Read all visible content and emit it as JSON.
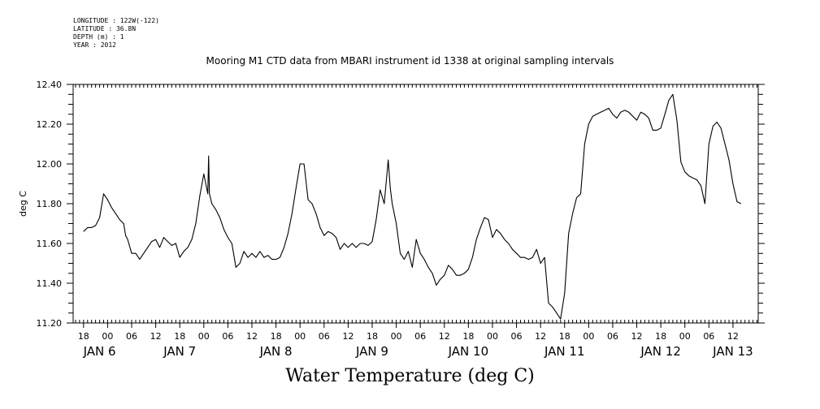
{
  "header": {
    "lines": [
      "LONGITUDE : 122W(-122)",
      "LATITUDE : 36.8N",
      "DEPTH (m) : 1",
      "YEAR : 2012"
    ]
  },
  "chart_data": {
    "type": "line",
    "title": "Mooring M1 CTD data from MBARI instrument id 1338 at original sampling intervals",
    "xlabel": "Water Temperature (deg C)",
    "ylabel": "deg C",
    "ylim": [
      11.2,
      12.4
    ],
    "yticks": [
      11.2,
      11.4,
      11.6,
      11.8,
      12.0,
      12.2,
      12.4
    ],
    "ytick_labels": [
      "11.20",
      "11.40",
      "11.60",
      "11.80",
      "12.00",
      "12.20",
      "12.40"
    ],
    "xlim_hours": [
      0,
      167
    ],
    "hour_ticks": [
      {
        "h": 0,
        "label": "18"
      },
      {
        "h": 6,
        "label": "00"
      },
      {
        "h": 12,
        "label": "06"
      },
      {
        "h": 18,
        "label": "12"
      },
      {
        "h": 24,
        "label": "18"
      },
      {
        "h": 30,
        "label": "00"
      },
      {
        "h": 36,
        "label": "06"
      },
      {
        "h": 42,
        "label": "12"
      },
      {
        "h": 48,
        "label": "18"
      },
      {
        "h": 54,
        "label": "00"
      },
      {
        "h": 60,
        "label": "06"
      },
      {
        "h": 66,
        "label": "12"
      },
      {
        "h": 72,
        "label": "18"
      },
      {
        "h": 78,
        "label": "00"
      },
      {
        "h": 84,
        "label": "06"
      },
      {
        "h": 90,
        "label": "12"
      },
      {
        "h": 96,
        "label": "18"
      },
      {
        "h": 102,
        "label": "00"
      },
      {
        "h": 108,
        "label": "06"
      },
      {
        "h": 114,
        "label": "12"
      },
      {
        "h": 120,
        "label": "18"
      },
      {
        "h": 126,
        "label": "00"
      },
      {
        "h": 132,
        "label": "06"
      },
      {
        "h": 138,
        "label": "12"
      },
      {
        "h": 144,
        "label": "18"
      },
      {
        "h": 150,
        "label": "00"
      },
      {
        "h": 156,
        "label": "06"
      },
      {
        "h": 162,
        "label": "12"
      }
    ],
    "day_labels": [
      {
        "h": 4,
        "label": "JAN 6"
      },
      {
        "h": 24,
        "label": "JAN 7"
      },
      {
        "h": 48,
        "label": "JAN 8"
      },
      {
        "h": 72,
        "label": "JAN 9"
      },
      {
        "h": 96,
        "label": "JAN 10"
      },
      {
        "h": 120,
        "label": "JAN 11"
      },
      {
        "h": 144,
        "label": "JAN 12"
      },
      {
        "h": 162,
        "label": "JAN 13"
      }
    ],
    "series": [
      {
        "points": [
          [
            0,
            11.66
          ],
          [
            1,
            11.68
          ],
          [
            2,
            11.68
          ],
          [
            3,
            11.69
          ],
          [
            4,
            11.73
          ],
          [
            5,
            11.85
          ],
          [
            6,
            11.82
          ],
          [
            7,
            11.78
          ],
          [
            8,
            11.75
          ],
          [
            9,
            11.72
          ],
          [
            10,
            11.7
          ],
          [
            10.5,
            11.64
          ],
          [
            11,
            11.62
          ],
          [
            12,
            11.55
          ],
          [
            13,
            11.55
          ],
          [
            14,
            11.52
          ],
          [
            15,
            11.55
          ],
          [
            16,
            11.58
          ],
          [
            17,
            11.61
          ],
          [
            18,
            11.62
          ],
          [
            19,
            11.58
          ],
          [
            20,
            11.63
          ],
          [
            21,
            11.61
          ],
          [
            22,
            11.59
          ],
          [
            23,
            11.6
          ],
          [
            24,
            11.53
          ],
          [
            25,
            11.56
          ],
          [
            26,
            11.58
          ],
          [
            27,
            11.62
          ],
          [
            28,
            11.7
          ],
          [
            29,
            11.84
          ],
          [
            30,
            11.95
          ],
          [
            31,
            11.85
          ],
          [
            31.2,
            12.04
          ],
          [
            31.4,
            11.85
          ],
          [
            32,
            11.8
          ],
          [
            33,
            11.77
          ],
          [
            34,
            11.73
          ],
          [
            35,
            11.67
          ],
          [
            36,
            11.63
          ],
          [
            37,
            11.6
          ],
          [
            38,
            11.48
          ],
          [
            39,
            11.5
          ],
          [
            40,
            11.56
          ],
          [
            41,
            11.53
          ],
          [
            42,
            11.55
          ],
          [
            43,
            11.53
          ],
          [
            44,
            11.56
          ],
          [
            45,
            11.53
          ],
          [
            46,
            11.54
          ],
          [
            47,
            11.52
          ],
          [
            48,
            11.52
          ],
          [
            49,
            11.53
          ],
          [
            50,
            11.58
          ],
          [
            51,
            11.65
          ],
          [
            52,
            11.75
          ],
          [
            53,
            11.88
          ],
          [
            54,
            12.0
          ],
          [
            55,
            12.0
          ],
          [
            56,
            11.82
          ],
          [
            57,
            11.8
          ],
          [
            58,
            11.75
          ],
          [
            59,
            11.68
          ],
          [
            60,
            11.64
          ],
          [
            61,
            11.66
          ],
          [
            62,
            11.65
          ],
          [
            63,
            11.63
          ],
          [
            64,
            11.57
          ],
          [
            65,
            11.6
          ],
          [
            66,
            11.58
          ],
          [
            67,
            11.6
          ],
          [
            68,
            11.58
          ],
          [
            69,
            11.6
          ],
          [
            70,
            11.6
          ],
          [
            71,
            11.59
          ],
          [
            72,
            11.61
          ],
          [
            73,
            11.72
          ],
          [
            74,
            11.87
          ],
          [
            75,
            11.8
          ],
          [
            76,
            12.02
          ],
          [
            76.5,
            11.88
          ],
          [
            77,
            11.8
          ],
          [
            78,
            11.7
          ],
          [
            79,
            11.55
          ],
          [
            80,
            11.52
          ],
          [
            81,
            11.56
          ],
          [
            82,
            11.48
          ],
          [
            83,
            11.62
          ],
          [
            84,
            11.55
          ],
          [
            85,
            11.52
          ],
          [
            86,
            11.48
          ],
          [
            87,
            11.45
          ],
          [
            88,
            11.39
          ],
          [
            89,
            11.42
          ],
          [
            90,
            11.44
          ],
          [
            91,
            11.49
          ],
          [
            92,
            11.47
          ],
          [
            93,
            11.44
          ],
          [
            94,
            11.44
          ],
          [
            95,
            11.45
          ],
          [
            96,
            11.47
          ],
          [
            97,
            11.53
          ],
          [
            98,
            11.62
          ],
          [
            99,
            11.68
          ],
          [
            100,
            11.73
          ],
          [
            101,
            11.72
          ],
          [
            102,
            11.63
          ],
          [
            103,
            11.67
          ],
          [
            104,
            11.65
          ],
          [
            105,
            11.62
          ],
          [
            106,
            11.6
          ],
          [
            107,
            11.57
          ],
          [
            108,
            11.55
          ],
          [
            109,
            11.53
          ],
          [
            110,
            11.53
          ],
          [
            111,
            11.52
          ],
          [
            112,
            11.53
          ],
          [
            113,
            11.57
          ],
          [
            114,
            11.5
          ],
          [
            115,
            11.53
          ],
          [
            116,
            11.3
          ],
          [
            117,
            11.28
          ],
          [
            118,
            11.25
          ],
          [
            119,
            11.22
          ],
          [
            120,
            11.35
          ],
          [
            121,
            11.65
          ],
          [
            122,
            11.75
          ],
          [
            123,
            11.83
          ],
          [
            124,
            11.85
          ],
          [
            125,
            12.1
          ],
          [
            126,
            12.2
          ],
          [
            127,
            12.24
          ],
          [
            128,
            12.25
          ],
          [
            129,
            12.26
          ],
          [
            130,
            12.27
          ],
          [
            131,
            12.28
          ],
          [
            132,
            12.25
          ],
          [
            133,
            12.23
          ],
          [
            134,
            12.26
          ],
          [
            135,
            12.27
          ],
          [
            136,
            12.26
          ],
          [
            137,
            12.24
          ],
          [
            138,
            12.22
          ],
          [
            139,
            12.26
          ],
          [
            140,
            12.25
          ],
          [
            141,
            12.23
          ],
          [
            142,
            12.17
          ],
          [
            143,
            12.17
          ],
          [
            144,
            12.18
          ],
          [
            145,
            12.25
          ],
          [
            146,
            12.32
          ],
          [
            147,
            12.35
          ],
          [
            148,
            12.22
          ],
          [
            149,
            12.01
          ],
          [
            150,
            11.96
          ],
          [
            151,
            11.94
          ],
          [
            152,
            11.93
          ],
          [
            153,
            11.92
          ],
          [
            154,
            11.89
          ],
          [
            155,
            11.8
          ],
          [
            156,
            12.1
          ],
          [
            157,
            12.19
          ],
          [
            158,
            12.21
          ],
          [
            159,
            12.18
          ],
          [
            160,
            12.1
          ],
          [
            161,
            12.02
          ],
          [
            162,
            11.9
          ],
          [
            163,
            11.81
          ],
          [
            164,
            11.8
          ]
        ]
      }
    ]
  }
}
